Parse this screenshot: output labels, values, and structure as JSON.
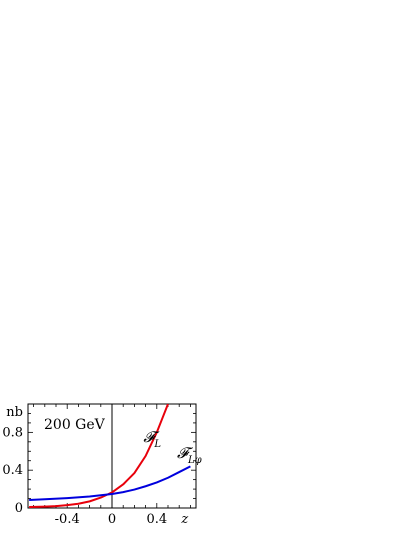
{
  "chart_data": {
    "type": "line",
    "title": "",
    "annotation": "200  GeV",
    "ylabel": "nb",
    "xlabel": "z",
    "xlim": [
      -0.75,
      0.75
    ],
    "ylim": [
      0,
      1.1
    ],
    "x_ticks": [
      {
        "value": -0.4,
        "label": "-0.4"
      },
      {
        "value": 0,
        "label": "0"
      },
      {
        "value": 0.4,
        "label": "0.4"
      }
    ],
    "y_ticks": [
      {
        "value": 0,
        "label": "0"
      },
      {
        "value": 0.4,
        "label": "0.4"
      },
      {
        "value": 0.8,
        "label": "0.8"
      }
    ],
    "vertical_line_x": 0,
    "series": [
      {
        "name": "𝓕",
        "subscript": "L",
        "color": "#e8000b",
        "x": [
          -0.74,
          -0.6,
          -0.5,
          -0.4,
          -0.3,
          -0.2,
          -0.1,
          0.0,
          0.1,
          0.2,
          0.3,
          0.4,
          0.45,
          0.5
        ],
        "y": [
          0.01,
          0.015,
          0.02,
          0.03,
          0.045,
          0.07,
          0.11,
          0.165,
          0.25,
          0.37,
          0.55,
          0.8,
          0.95,
          1.1
        ]
      },
      {
        "name": "𝓕",
        "subscript": "Lφ",
        "color": "#0000dd",
        "x": [
          -0.74,
          -0.6,
          -0.4,
          -0.2,
          0.0,
          0.1,
          0.2,
          0.3,
          0.4,
          0.5,
          0.6,
          0.7
        ],
        "y": [
          0.085,
          0.092,
          0.105,
          0.122,
          0.148,
          0.168,
          0.195,
          0.23,
          0.27,
          0.32,
          0.38,
          0.44
        ]
      }
    ]
  }
}
